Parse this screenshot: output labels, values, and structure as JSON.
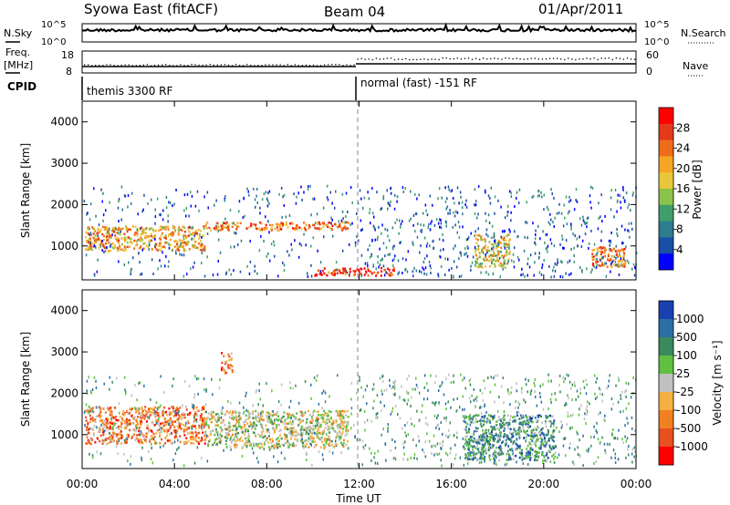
{
  "header": {
    "title": "Syowa East (fitACF)",
    "beam": "Beam 04",
    "date": "01/Apr/2011"
  },
  "top_panels": {
    "nsky_label": "N.Sky",
    "nsearch_label": "N.Search",
    "freq_label_line1": "Freq.",
    "freq_label_line2": "[MHz]",
    "nave_label": "Nave",
    "cpid_label": "CPID",
    "nsky_ticks": [
      "10^5",
      "10^0"
    ],
    "nsearch_ticks": [
      "10^5",
      "10^0"
    ],
    "freq_ticks": [
      "18",
      "8"
    ],
    "nave_ticks": [
      "60",
      "0"
    ],
    "cpid_segments": [
      {
        "start_hour": 0,
        "label": "themis 3300 RF"
      },
      {
        "start_hour": 12,
        "label": "normal (fast) -151 RF"
      }
    ]
  },
  "colorbars": {
    "power": {
      "label": "Power [dB]",
      "ticks": [
        "4",
        "8",
        "12",
        "16",
        "20",
        "24",
        "28"
      ],
      "colors": [
        "#0000ff",
        "#1a4fa6",
        "#2d7d8e",
        "#3f9e6a",
        "#8bc34a",
        "#e8c83a",
        "#f5a623",
        "#ef6c1a",
        "#e53a1a",
        "#ff0000"
      ]
    },
    "velocity": {
      "label": "Velocity [m s⁻¹]",
      "ticks": [
        "1000",
        "500",
        "100",
        "25",
        "-25",
        "-100",
        "-500",
        "-1000"
      ],
      "colors": [
        "#1a40b0",
        "#2c6fa5",
        "#3a8a5e",
        "#5fc041",
        "#c0c0c0",
        "#f5b041",
        "#f08020",
        "#e85020",
        "#ff0000"
      ]
    }
  },
  "chart_data": [
    {
      "type": "heatmap",
      "title": "Power",
      "ylabel": "Slant Range [km]",
      "xlabel": "",
      "x_range_hours": [
        0,
        24
      ],
      "y_range_km": [
        180,
        4500
      ],
      "y_ticks": [
        "1000",
        "2000",
        "3000",
        "4000"
      ],
      "y_tick_values": [
        1000,
        2000,
        3000,
        4000
      ],
      "colorbar": "Power [dB]",
      "data_gap_line_hour": 12,
      "features": [
        {
          "hour_start": 0.1,
          "hour_end": 5.3,
          "range_start_km": 900,
          "range_end_km": 1500,
          "level_db": 20
        },
        {
          "hour_start": 5.3,
          "hour_end": 11.5,
          "range_start_km": 1400,
          "range_end_km": 1600,
          "level_db": 22
        },
        {
          "hour_start": 10.0,
          "hour_end": 13.5,
          "range_start_km": 300,
          "range_end_km": 500,
          "level_db": 26
        },
        {
          "hour_start": 17.0,
          "hour_end": 18.5,
          "range_start_km": 500,
          "range_end_km": 1300,
          "level_db": 16
        },
        {
          "hour_start": 22.0,
          "hour_end": 23.5,
          "range_start_km": 500,
          "range_end_km": 1000,
          "level_db": 24
        }
      ]
    },
    {
      "type": "heatmap",
      "title": "Velocity",
      "ylabel": "Slant Range [km]",
      "xlabel": "Time UT",
      "x_range_hours": [
        0,
        24
      ],
      "x_ticks": [
        "00:00",
        "04:00",
        "08:00",
        "12:00",
        "16:00",
        "20:00",
        "00:00"
      ],
      "y_range_km": [
        180,
        4500
      ],
      "y_ticks": [
        "1000",
        "2000",
        "3000",
        "4000"
      ],
      "y_tick_values": [
        1000,
        2000,
        3000,
        4000
      ],
      "colorbar": "Velocity [m s-1]",
      "data_gap_line_hour": 12,
      "features": [
        {
          "hour_start": 0.1,
          "hour_end": 5.3,
          "range_start_km": 800,
          "range_end_km": 1700,
          "velocity": -300
        },
        {
          "hour_start": 5.3,
          "hour_end": 11.5,
          "range_start_km": 700,
          "range_end_km": 1600,
          "velocity": 0
        },
        {
          "hour_start": 16.5,
          "hour_end": 20.5,
          "range_start_km": 400,
          "range_end_km": 1500,
          "velocity": 200
        },
        {
          "hour_start": 6.0,
          "hour_end": 6.5,
          "range_start_km": 2500,
          "range_end_km": 3000,
          "velocity": -300
        }
      ]
    }
  ]
}
